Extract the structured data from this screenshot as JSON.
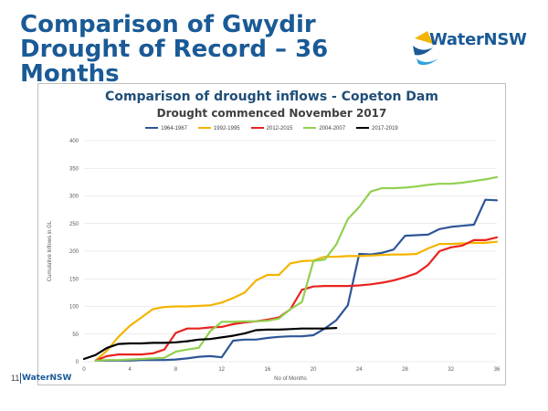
{
  "slide": {
    "title_line1": "Comparison of Gwydir",
    "title_line2": "Drought of Record – 36 Months",
    "logo_text": "WaterNSW",
    "page_number": "11",
    "footer_logo": "WaterNSW"
  },
  "chart_data": {
    "type": "line",
    "title": "Comparison of drought inflows - Copeton Dam",
    "subtitle": "Drought commenced November 2017",
    "xlabel": "No of Months",
    "ylabel": "Cumulative Inflows in GL",
    "xlim": [
      0,
      36
    ],
    "ylim": [
      0,
      400
    ],
    "xticks": [
      0,
      4,
      8,
      12,
      16,
      20,
      24,
      28,
      32,
      36
    ],
    "yticks": [
      0,
      50,
      100,
      150,
      200,
      250,
      300,
      350,
      400
    ],
    "xtick_labels": [
      "0",
      "4",
      "8",
      "12",
      "16",
      "20",
      "24",
      "28",
      "32",
      "36"
    ],
    "ytick_labels": [
      "0",
      "50",
      "100",
      "150",
      "200",
      "250",
      "300",
      "350",
      "400"
    ],
    "grid": "horizontal",
    "legend_position": "top",
    "series": [
      {
        "name": "1964-1967",
        "color": "#2e5597",
        "x": [
          1,
          2,
          3,
          4,
          5,
          6,
          7,
          8,
          9,
          10,
          11,
          12,
          13,
          14,
          15,
          16,
          17,
          18,
          19,
          20,
          21,
          22,
          23,
          24,
          25,
          26,
          27,
          28,
          29,
          30,
          31,
          32,
          33,
          34,
          35,
          36
        ],
        "y": [
          2,
          2,
          2,
          2,
          3,
          3,
          3,
          4,
          6,
          9,
          10,
          8,
          38,
          40,
          40,
          43,
          45,
          46,
          46,
          48,
          60,
          75,
          102,
          195,
          194,
          197,
          203,
          228,
          229,
          230,
          240,
          244,
          246,
          248,
          293,
          292
        ]
      },
      {
        "name": "1992-1995",
        "color": "#f4b400",
        "x": [
          1,
          2,
          3,
          4,
          5,
          6,
          7,
          8,
          9,
          10,
          11,
          12,
          13,
          14,
          15,
          16,
          17,
          18,
          19,
          20,
          21,
          22,
          23,
          24,
          25,
          26,
          27,
          28,
          29,
          30,
          31,
          32,
          33,
          34,
          35,
          36
        ],
        "y": [
          2,
          20,
          45,
          65,
          80,
          95,
          99,
          100,
          100,
          101,
          102,
          107,
          115,
          125,
          147,
          157,
          157,
          178,
          182,
          183,
          190,
          190,
          191,
          191,
          192,
          193,
          194,
          194,
          195,
          205,
          213,
          213,
          214,
          215,
          215,
          217
        ]
      },
      {
        "name": "2012-2015",
        "color": "#e8231f",
        "x": [
          1,
          2,
          3,
          4,
          5,
          6,
          7,
          8,
          9,
          10,
          11,
          12,
          13,
          14,
          15,
          16,
          17,
          18,
          19,
          20,
          21,
          22,
          23,
          24,
          25,
          26,
          27,
          28,
          29,
          30,
          31,
          32,
          33,
          34,
          35,
          36
        ],
        "y": [
          2,
          10,
          13,
          13,
          13,
          15,
          22,
          52,
          60,
          60,
          62,
          63,
          68,
          71,
          73,
          76,
          80,
          95,
          130,
          136,
          137,
          137,
          137,
          138,
          140,
          143,
          147,
          153,
          160,
          175,
          200,
          207,
          210,
          220,
          220,
          225
        ]
      },
      {
        "name": "2004-2007",
        "color": "#92d050",
        "x": [
          1,
          2,
          3,
          4,
          5,
          6,
          7,
          8,
          9,
          10,
          11,
          12,
          13,
          14,
          15,
          16,
          17,
          18,
          19,
          20,
          21,
          22,
          23,
          24,
          25,
          26,
          27,
          28,
          29,
          30,
          31,
          32,
          33,
          34,
          35,
          36
        ],
        "y": [
          2,
          3,
          3,
          4,
          5,
          6,
          7,
          18,
          22,
          25,
          55,
          72,
          72,
          73,
          73,
          74,
          78,
          95,
          108,
          182,
          185,
          212,
          258,
          280,
          308,
          314,
          314,
          315,
          317,
          320,
          322,
          322,
          324,
          327,
          330,
          334
        ]
      },
      {
        "name": "2017-2019",
        "color": "#000000",
        "x": [
          0,
          1,
          2,
          3,
          4,
          5,
          6,
          7,
          8,
          9,
          10,
          11,
          12,
          13,
          14,
          15,
          16,
          17,
          18,
          19,
          20,
          21,
          22
        ],
        "y": [
          5,
          12,
          25,
          32,
          33,
          33,
          34,
          34,
          35,
          37,
          40,
          41,
          44,
          47,
          51,
          57,
          58,
          58,
          59,
          60,
          60,
          60,
          61
        ]
      }
    ]
  }
}
